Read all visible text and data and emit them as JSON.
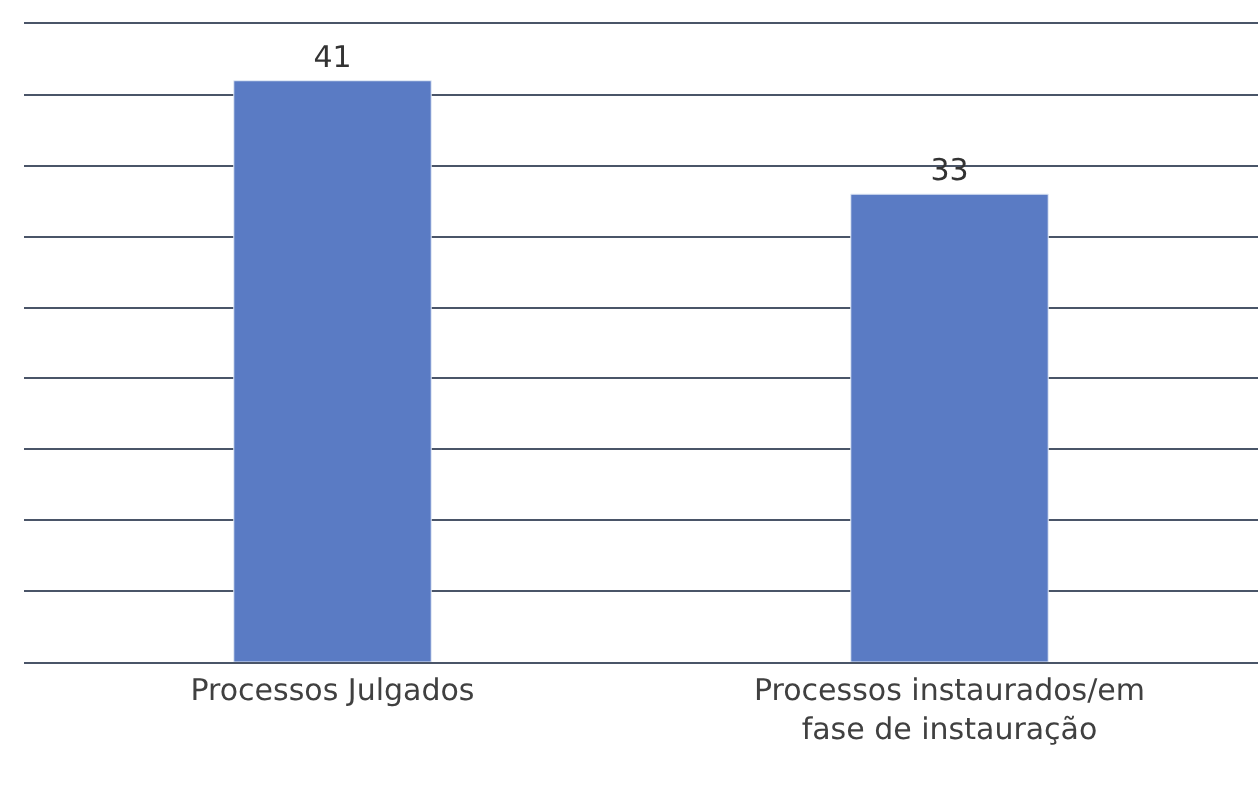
{
  "chart_data": {
    "type": "bar",
    "categories": [
      "Processos Julgados",
      "Processos instaurados/em fase de instauração"
    ],
    "values": [
      41,
      33
    ],
    "color": "#5a7bc4",
    "data_labels": true,
    "ylim": [
      0,
      45
    ],
    "yticks": [
      {
        "value": 0,
        "label": null
      },
      {
        "value": 5,
        "label": null
      },
      {
        "value": 10,
        "label": null
      },
      {
        "value": 15,
        "label": null
      },
      {
        "value": 20,
        "label": null
      },
      {
        "value": 25,
        "label": null
      },
      {
        "value": 30,
        "label": null
      },
      {
        "value": 35,
        "label": null
      },
      {
        "value": 40,
        "label": null
      },
      {
        "value": 45,
        "label": null
      }
    ],
    "grid": "y",
    "tick_labels": "x"
  }
}
